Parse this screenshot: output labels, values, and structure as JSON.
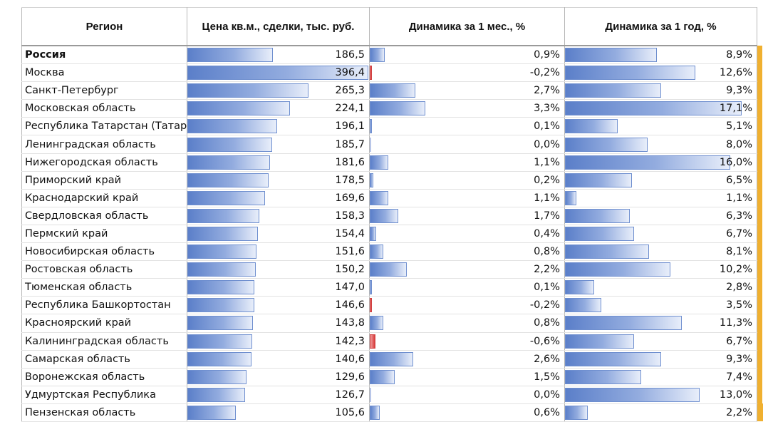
{
  "headers": {
    "region": "Регион",
    "price": "Цена кв.м., сделки, тыс. руб.",
    "month": "Динамика за 1 мес., %",
    "year": "Динамика за 1 год, %"
  },
  "colors": {
    "bar_positive": "#5b7fc9",
    "bar_negative": "#d83a3a",
    "side_strip": "#f0b030"
  },
  "rows": [
    {
      "region": "Россия",
      "price": "186,5",
      "month": "0,9%",
      "year": "8,9%",
      "bold": true
    },
    {
      "region": "Москва",
      "price": "396,4",
      "month": "-0,2%",
      "year": "12,6%"
    },
    {
      "region": "Санкт-Петербург",
      "price": "265,3",
      "month": "2,7%",
      "year": "9,3%"
    },
    {
      "region": "Московская область",
      "price": "224,1",
      "month": "3,3%",
      "year": "17,1%"
    },
    {
      "region": "Республика Татарстан (Татар",
      "price": "196,1",
      "month": "0,1%",
      "year": "5,1%"
    },
    {
      "region": "Ленинградская область",
      "price": "185,7",
      "month": "0,0%",
      "year": "8,0%"
    },
    {
      "region": "Нижегородская область",
      "price": "181,6",
      "month": "1,1%",
      "year": "16,0%"
    },
    {
      "region": "Приморский край",
      "price": "178,5",
      "month": "0,2%",
      "year": "6,5%"
    },
    {
      "region": "Краснодарский край",
      "price": "169,6",
      "month": "1,1%",
      "year": "1,1%"
    },
    {
      "region": "Свердловская область",
      "price": "158,3",
      "month": "1,7%",
      "year": "6,3%"
    },
    {
      "region": "Пермский край",
      "price": "154,4",
      "month": "0,4%",
      "year": "6,7%"
    },
    {
      "region": "Новосибирская область",
      "price": "151,6",
      "month": "0,8%",
      "year": "8,1%"
    },
    {
      "region": "Ростовская область",
      "price": "150,2",
      "month": "2,2%",
      "year": "10,2%"
    },
    {
      "region": "Тюменская область",
      "price": "147,0",
      "month": "0,1%",
      "year": "2,8%"
    },
    {
      "region": "Республика Башкортостан",
      "price": "146,6",
      "month": "-0,2%",
      "year": "3,5%"
    },
    {
      "region": "Красноярский край",
      "price": "143,8",
      "month": "0,8%",
      "year": "11,3%"
    },
    {
      "region": "Калининградская область",
      "price": "142,3",
      "month": "-0,6%",
      "year": "6,7%"
    },
    {
      "region": "Самарская область",
      "price": "140,6",
      "month": "2,6%",
      "year": "9,3%"
    },
    {
      "region": "Воронежская область",
      "price": "129,6",
      "month": "1,5%",
      "year": "7,4%"
    },
    {
      "region": "Удмуртская Республика",
      "price": "126,7",
      "month": "0,0%",
      "year": "13,0%"
    },
    {
      "region": "Пензенская область",
      "price": "105,6",
      "month": "0,6%",
      "year": "2,2%"
    }
  ]
}
